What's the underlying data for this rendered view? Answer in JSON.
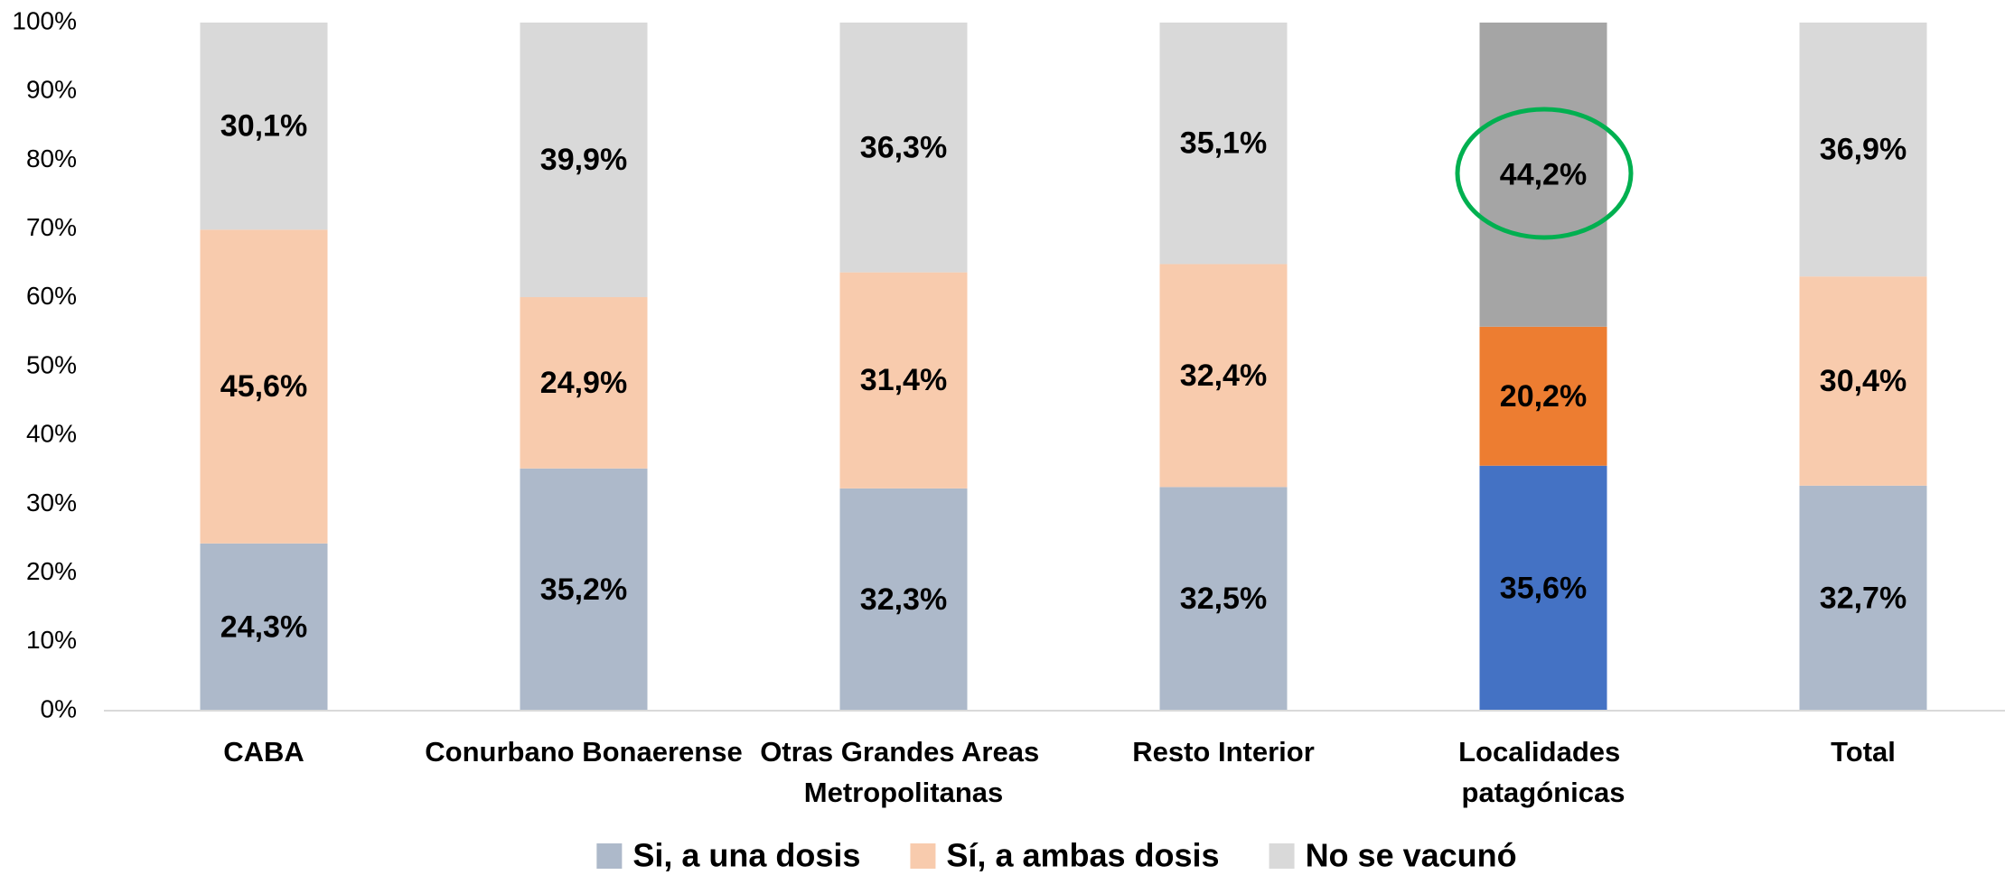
{
  "chart_data": {
    "type": "stacked_bar",
    "categories": [
      "CABA",
      "Conurbano Bonaerense",
      "Otras Grandes Areas Metropolitanas",
      "Resto Interior",
      "Localidades patagónicas",
      "Total"
    ],
    "series": [
      {
        "name": "Si, a una dosis",
        "color": "#adb9ca",
        "colors": [
          "#adb9ca",
          "#adb9ca",
          "#adb9ca",
          "#adb9ca",
          "#4472c4",
          "#adb9ca"
        ],
        "values": [
          24.3,
          35.2,
          32.3,
          32.5,
          35.6,
          32.7
        ],
        "value_labels": [
          "24,3%",
          "35,2%",
          "32,3%",
          "32,5%",
          "35,6%",
          "32,7%"
        ]
      },
      {
        "name": "Sí, a ambas dosis",
        "color": "#f8cbad",
        "colors": [
          "#f8cbad",
          "#f8cbad",
          "#f8cbad",
          "#f8cbad",
          "#ed7d31",
          "#f8cbad"
        ],
        "values": [
          45.6,
          24.9,
          31.4,
          32.4,
          20.2,
          30.4
        ],
        "value_labels": [
          "45,6%",
          "24,9%",
          "31,4%",
          "32,4%",
          "20,2%",
          "30,4%"
        ]
      },
      {
        "name": "No se vacunó",
        "color": "#d9d9d9",
        "colors": [
          "#d9d9d9",
          "#d9d9d9",
          "#d9d9d9",
          "#d9d9d9",
          "#a5a5a5",
          "#d9d9d9"
        ],
        "values": [
          30.1,
          39.9,
          36.3,
          35.1,
          44.2,
          36.9
        ],
        "value_labels": [
          "30,1%",
          "39,9%",
          "36,3%",
          "35,1%",
          "44,2%",
          "36,9%"
        ]
      }
    ],
    "ylim": [
      0,
      100
    ],
    "yticks": [
      {
        "value": 0,
        "label": "0%"
      },
      {
        "value": 10,
        "label": "10%"
      },
      {
        "value": 20,
        "label": "20%"
      },
      {
        "value": 30,
        "label": "30%"
      },
      {
        "value": 40,
        "label": "40%"
      },
      {
        "value": 50,
        "label": "50%"
      },
      {
        "value": 60,
        "label": "60%"
      },
      {
        "value": 70,
        "label": "70%"
      },
      {
        "value": 80,
        "label": "80%"
      },
      {
        "value": 90,
        "label": "90%"
      },
      {
        "value": 100,
        "label": "100%"
      }
    ],
    "grid": false,
    "legend": "bottom"
  }
}
